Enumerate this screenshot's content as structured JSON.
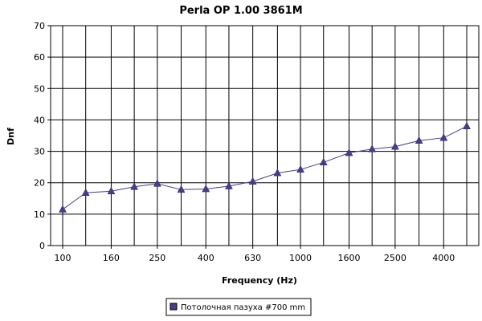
{
  "chart_data": {
    "type": "line",
    "title": "Perla OP 1.00 3861M",
    "xlabel": "Frequency (Hz)",
    "ylabel": "Dnf",
    "x_scale": "log",
    "x_tick_labels": [
      "100",
      "160",
      "250",
      "400",
      "630",
      "1000",
      "1600",
      "2500",
      "4000"
    ],
    "y_ticks": [
      0,
      10,
      20,
      30,
      40,
      50,
      60,
      70
    ],
    "ylim": [
      0,
      70
    ],
    "grid": true,
    "legend_position": "bottom-center",
    "x": [
      100,
      125,
      160,
      200,
      250,
      315,
      400,
      500,
      630,
      800,
      1000,
      1250,
      1600,
      2000,
      2500,
      3150,
      4000,
      5000
    ],
    "series": [
      {
        "name": "Потолочная пазуха #700 mm",
        "color": "#483d8b",
        "values": [
          11.5,
          16.8,
          17.3,
          18.7,
          19.7,
          17.8,
          18.0,
          18.9,
          20.4,
          23.1,
          24.2,
          26.5,
          29.5,
          30.7,
          31.5,
          33.4,
          34.3,
          38.0
        ]
      }
    ]
  }
}
